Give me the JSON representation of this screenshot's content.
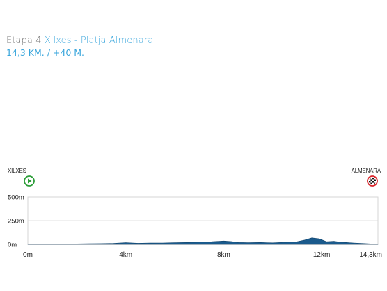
{
  "stage": {
    "label": "Etapa 4",
    "route": "Xilxes - Platja Almenara",
    "summary": "14,3 KM. / +40 M."
  },
  "start": {
    "town": "XILXES",
    "icon": "play-circle-icon",
    "color": "#2e9e3a"
  },
  "finish": {
    "town": "ALMENARA",
    "icon": "checkered-flag-icon",
    "color": "#d9252b"
  },
  "colors": {
    "accent": "#3aa6dc",
    "profile_fill": "#1a5a8c",
    "grid": "#d6d6d6"
  },
  "chart_data": {
    "type": "area",
    "xlabel": "",
    "ylabel": "",
    "xlim": [
      0,
      14.3
    ],
    "ylim": [
      0,
      500
    ],
    "grid": true,
    "y_ticks": [
      {
        "value": 0,
        "label": "0m"
      },
      {
        "value": 250,
        "label": "250m"
      },
      {
        "value": 500,
        "label": "500m"
      }
    ],
    "x_ticks": [
      {
        "value": 0,
        "label": "0m"
      },
      {
        "value": 4,
        "label": "4km"
      },
      {
        "value": 8,
        "label": "8km"
      },
      {
        "value": 12,
        "label": "12km"
      },
      {
        "value": 14.3,
        "label": "14,3km"
      }
    ],
    "series": [
      {
        "x": [
          0,
          1.0,
          2.0,
          3.0,
          3.5,
          4.0,
          4.5,
          5.0,
          5.5,
          6.0,
          6.5,
          7.0,
          7.5,
          8.0,
          8.3,
          8.6,
          9.0,
          9.5,
          10.0,
          10.5,
          11.0,
          11.3,
          11.6,
          11.9,
          12.2,
          12.5,
          12.8,
          13.0,
          13.3,
          13.6,
          14.0,
          14.3
        ],
        "y": [
          2,
          3,
          5,
          8,
          10,
          18,
          12,
          15,
          14,
          18,
          20,
          24,
          28,
          35,
          30,
          20,
          18,
          20,
          16,
          22,
          28,
          45,
          68,
          58,
          28,
          32,
          22,
          20,
          15,
          10,
          5,
          2
        ]
      }
    ]
  }
}
